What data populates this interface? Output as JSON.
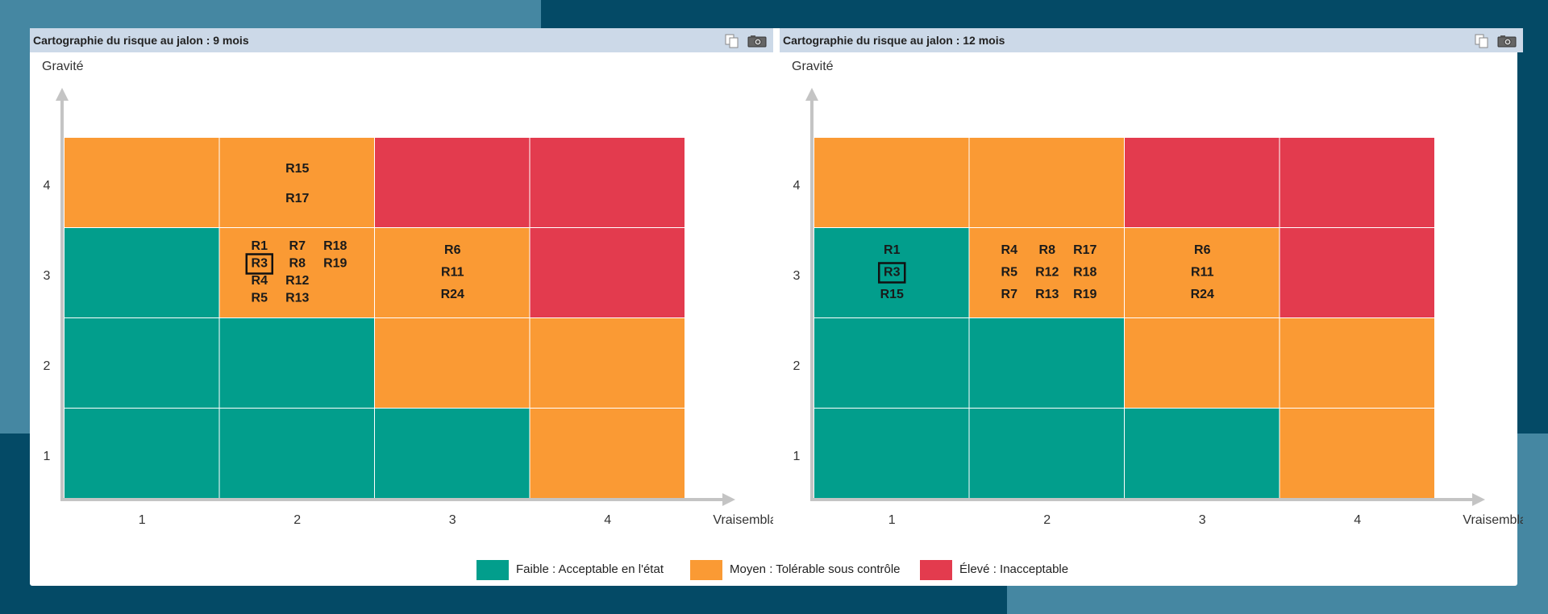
{
  "colors": {
    "low": "#029e8c",
    "medium": "#fa9a34",
    "high": "#e33b4e"
  },
  "legend": [
    {
      "level": "low",
      "label": "Faible : Acceptable en l'état"
    },
    {
      "level": "medium",
      "label": "Moyen : Tolérable sous contrôle"
    },
    {
      "level": "high",
      "label": "Élevé : Inacceptable"
    }
  ],
  "panels": [
    {
      "title": "Cartographie du risque au jalon : 9 mois",
      "icons": [
        "copy-icon",
        "camera-icon"
      ]
    },
    {
      "title": "Cartographie du risque au jalon : 12 mois",
      "icons": [
        "copy-icon",
        "camera-icon"
      ]
    }
  ],
  "chart_data": [
    {
      "type": "heatmap",
      "title": "Cartographie du risque au jalon : 9 mois",
      "xlabel": "Vraisemblance",
      "ylabel": "Gravité",
      "x_ticks": [
        "1",
        "2",
        "3",
        "4"
      ],
      "y_ticks": [
        "1",
        "2",
        "3",
        "4"
      ],
      "grid_levels_by_gravite": {
        "4": [
          "medium",
          "medium",
          "high",
          "high"
        ],
        "3": [
          "low",
          "medium",
          "medium",
          "high"
        ],
        "2": [
          "low",
          "low",
          "medium",
          "medium"
        ],
        "1": [
          "low",
          "low",
          "low",
          "medium"
        ]
      },
      "risks": [
        {
          "vraisemblance": 2,
          "gravite": 4,
          "rows": [
            [
              "R15"
            ],
            [
              "R17"
            ]
          ],
          "highlight": []
        },
        {
          "vraisemblance": 2,
          "gravite": 3,
          "rows": [
            [
              "R1",
              "R7",
              "R18"
            ],
            [
              "R3",
              "R8",
              "R19"
            ],
            [
              "R4",
              "R12"
            ],
            [
              "R5",
              "R13"
            ]
          ],
          "highlight": [
            "R3"
          ]
        },
        {
          "vraisemblance": 3,
          "gravite": 3,
          "rows": [
            [
              "R6"
            ],
            [
              "R11"
            ],
            [
              "R24"
            ]
          ],
          "highlight": []
        }
      ]
    },
    {
      "type": "heatmap",
      "title": "Cartographie du risque au jalon : 12 mois",
      "xlabel": "Vraisemblance",
      "ylabel": "Gravité",
      "x_ticks": [
        "1",
        "2",
        "3",
        "4"
      ],
      "y_ticks": [
        "1",
        "2",
        "3",
        "4"
      ],
      "grid_levels_by_gravite": {
        "4": [
          "medium",
          "medium",
          "high",
          "high"
        ],
        "3": [
          "low",
          "medium",
          "medium",
          "high"
        ],
        "2": [
          "low",
          "low",
          "medium",
          "medium"
        ],
        "1": [
          "low",
          "low",
          "low",
          "medium"
        ]
      },
      "risks": [
        {
          "vraisemblance": 1,
          "gravite": 3,
          "rows": [
            [
              "R1"
            ],
            [
              "R3"
            ],
            [
              "R15"
            ]
          ],
          "highlight": [
            "R3"
          ]
        },
        {
          "vraisemblance": 2,
          "gravite": 3,
          "rows": [
            [
              "R4",
              "R8",
              "R17"
            ],
            [
              "R5",
              "R12",
              "R18"
            ],
            [
              "R7",
              "R13",
              "R19"
            ]
          ],
          "highlight": []
        },
        {
          "vraisemblance": 3,
          "gravite": 3,
          "rows": [
            [
              "R6"
            ],
            [
              "R11"
            ],
            [
              "R24"
            ]
          ],
          "highlight": []
        }
      ]
    }
  ]
}
